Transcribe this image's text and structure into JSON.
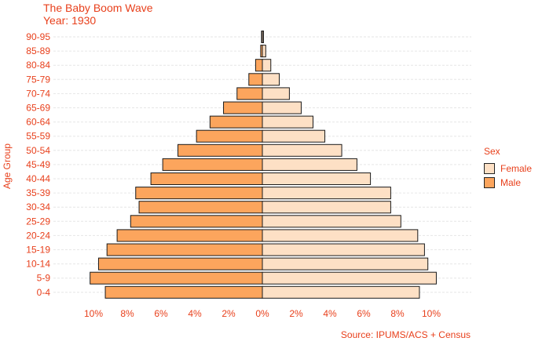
{
  "chart_data": {
    "type": "bar",
    "title": "The Baby Boom Wave",
    "subtitle": "Year: 1930",
    "xlabel": "",
    "ylabel": "Age Group",
    "caption": "Source: IPUMS/ACS + Census",
    "orientation": "horizontal-population-pyramid",
    "xlim": [
      -11,
      11
    ],
    "x_ticks": [
      "10%",
      "8%",
      "6%",
      "4%",
      "2%",
      "0%",
      "2%",
      "4%",
      "6%",
      "8%",
      "10%"
    ],
    "x_tick_values": [
      -10,
      -8,
      -6,
      -4,
      -2,
      0,
      2,
      4,
      6,
      8,
      10
    ],
    "categories": [
      "0-4",
      "5-9",
      "10-14",
      "15-19",
      "20-24",
      "25-29",
      "30-34",
      "35-39",
      "40-44",
      "45-49",
      "50-54",
      "55-59",
      "60-64",
      "65-69",
      "70-74",
      "75-79",
      "80-84",
      "85-89",
      "90-95"
    ],
    "series": [
      {
        "name": "Female",
        "color": "#fde0c5",
        "values": [
          9.3,
          10.3,
          9.8,
          9.6,
          9.2,
          8.2,
          7.6,
          7.6,
          6.4,
          5.6,
          4.7,
          3.7,
          3.0,
          2.3,
          1.6,
          1.0,
          0.5,
          0.2,
          0.05
        ]
      },
      {
        "name": "Male",
        "color": "#fca55d",
        "values": [
          9.3,
          10.2,
          9.7,
          9.2,
          8.6,
          7.8,
          7.3,
          7.5,
          6.6,
          5.9,
          5.0,
          3.9,
          3.1,
          2.3,
          1.5,
          0.8,
          0.4,
          0.1,
          0.05
        ]
      }
    ],
    "grid": "horizontal-dashed",
    "legend_title": "Sex",
    "legend_position": "right"
  }
}
